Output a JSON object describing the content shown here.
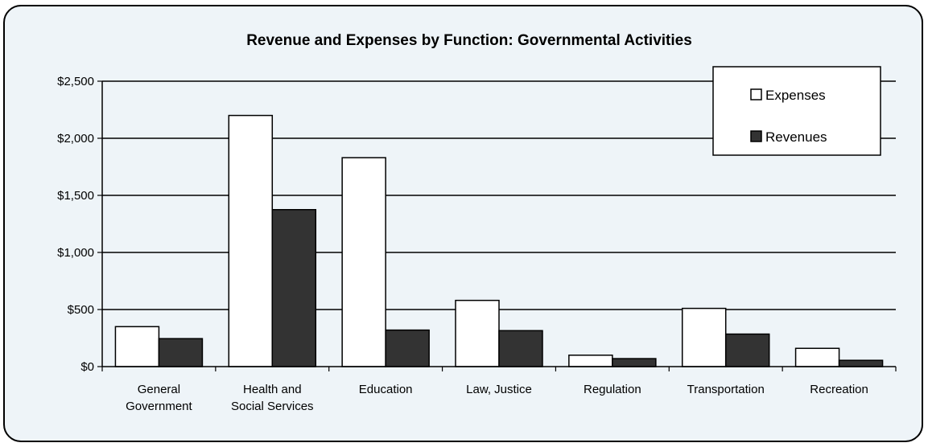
{
  "chart_data": {
    "type": "bar",
    "title": "Revenue and Expenses by Function:  Governmental Activities",
    "xlabel": "",
    "ylabel": "",
    "ylim": [
      0,
      2500
    ],
    "ytick_values": [
      0,
      500,
      1000,
      1500,
      2000,
      2500
    ],
    "ytick_labels": [
      "$0",
      "$500",
      "$1,000",
      "$1,500",
      "$2,000",
      "$2,500"
    ],
    "categories": [
      [
        "General",
        "Government"
      ],
      [
        "Health and",
        "Social Services"
      ],
      [
        "Education"
      ],
      [
        "Law, Justice"
      ],
      [
        "Regulation"
      ],
      [
        "Transportation"
      ],
      [
        "Recreation"
      ]
    ],
    "series": [
      {
        "name": "Expenses",
        "color": "#ffffff",
        "values": [
          350,
          2200,
          1830,
          580,
          100,
          510,
          160
        ]
      },
      {
        "name": "Revenues",
        "color": "#333333",
        "values": [
          245,
          1375,
          320,
          315,
          70,
          285,
          55
        ]
      }
    ],
    "grid": true,
    "legend_position": "top-right"
  }
}
